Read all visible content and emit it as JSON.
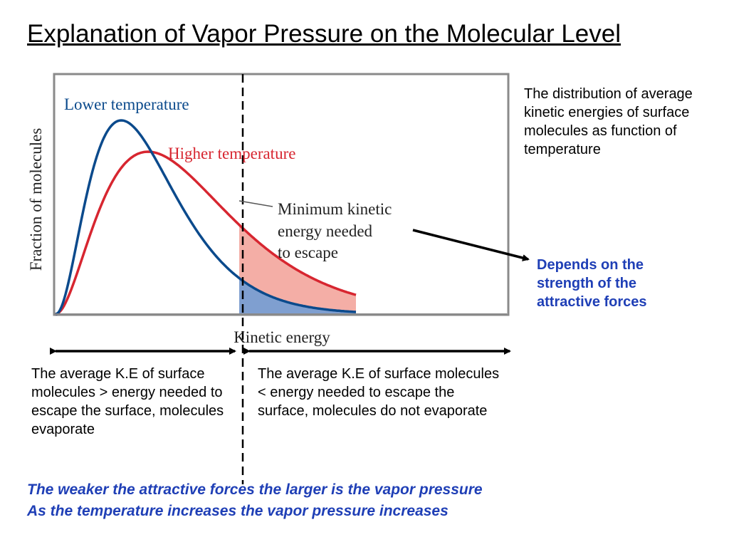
{
  "title": "Explanation of Vapor Pressure on the Molecular Level",
  "graph": {
    "y_axis_label": "Fraction of molecules",
    "x_axis_label": "Kinetic energy",
    "lower_temperature_label": "Lower temperature",
    "higher_temperature_label": "Higher temperature",
    "threshold_label_lines": [
      "Minimum kinetic",
      "energy needed",
      "to escape"
    ],
    "colors": {
      "lower_temperature": "#0b4a8c",
      "higher_temperature": "#d72630",
      "lower_fill": "#7f9fd0",
      "higher_fill": "#f4aea6",
      "frame": "#8a8a8a"
    }
  },
  "side_note": "The distribution of average kinetic energies of surface molecules as function of temperature",
  "depends_note": "Depends on the strength of the attractive forces",
  "left_region_text": "The average K.E of surface molecules > energy needed to escape the surface, molecules evaporate",
  "right_region_text": "The average K.E of surface molecules < energy needed to escape the surface, molecules do not evaporate",
  "conclusions": [
    "The weaker the attractive forces the larger is the vapor pressure",
    "As the temperature increases the vapor pressure increases"
  ],
  "accent_color": "#1f3fb6"
}
